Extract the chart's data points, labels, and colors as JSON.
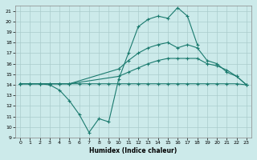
{
  "xlabel": "Humidex (Indice chaleur)",
  "bg_color": "#cceaea",
  "grid_color": "#aacccc",
  "line_color": "#1a7a6e",
  "xlim": [
    -0.5,
    23.5
  ],
  "ylim": [
    9,
    21.5
  ],
  "yticks": [
    9,
    10,
    11,
    12,
    13,
    14,
    15,
    16,
    17,
    18,
    19,
    20,
    21
  ],
  "xticks": [
    0,
    1,
    2,
    3,
    4,
    5,
    6,
    7,
    8,
    9,
    10,
    11,
    12,
    13,
    14,
    15,
    16,
    17,
    18,
    19,
    20,
    21,
    22,
    23
  ],
  "line1_x": [
    0,
    1,
    2,
    3,
    4,
    5,
    6,
    7,
    8,
    9,
    10,
    11,
    12,
    13,
    14,
    15,
    16,
    17,
    18,
    19,
    20,
    21,
    22,
    23
  ],
  "line1_y": [
    14.1,
    14.1,
    14.1,
    14.1,
    14.1,
    14.1,
    14.1,
    14.1,
    14.1,
    14.1,
    14.1,
    14.1,
    14.1,
    14.1,
    14.1,
    14.1,
    14.1,
    14.1,
    14.1,
    14.1,
    14.1,
    14.1,
    14.1,
    14.0
  ],
  "line2_x": [
    0,
    1,
    2,
    3,
    4,
    5,
    10,
    11,
    12,
    13,
    14,
    15,
    16,
    17,
    18,
    19,
    20,
    21,
    22,
    23
  ],
  "line2_y": [
    14.1,
    14.1,
    14.1,
    14.1,
    14.1,
    14.1,
    14.8,
    15.2,
    15.6,
    16.0,
    16.3,
    16.5,
    16.5,
    16.5,
    16.5,
    16.0,
    15.8,
    15.4,
    14.8,
    14.0
  ],
  "line3_x": [
    0,
    1,
    2,
    3,
    4,
    5,
    10,
    11,
    12,
    13,
    14,
    15,
    16,
    17,
    18,
    19,
    20,
    21,
    22,
    23
  ],
  "line3_y": [
    14.1,
    14.1,
    14.1,
    14.1,
    14.1,
    14.1,
    15.5,
    16.3,
    17.0,
    17.5,
    17.8,
    18.0,
    17.5,
    17.8,
    17.5,
    16.3,
    16.0,
    15.2,
    14.8,
    14.0
  ],
  "line4_x": [
    0,
    1,
    2,
    3,
    4,
    5,
    6,
    7,
    8,
    9,
    10,
    11,
    12,
    13,
    14,
    15,
    16,
    17,
    18
  ],
  "line4_y": [
    14.1,
    14.1,
    14.1,
    14.0,
    13.5,
    12.5,
    11.2,
    9.5,
    10.8,
    10.5,
    14.5,
    17.0,
    19.5,
    20.2,
    20.5,
    20.3,
    21.3,
    20.5,
    17.8
  ]
}
